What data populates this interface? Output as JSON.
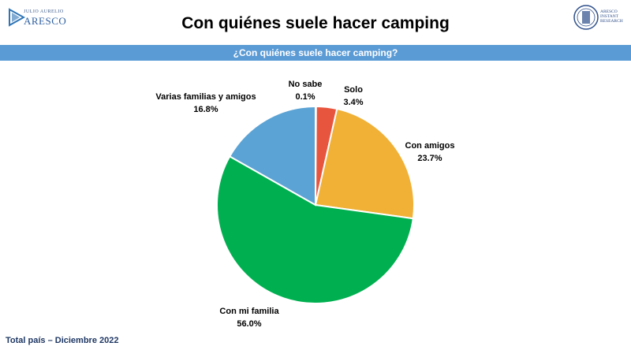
{
  "header": {
    "brand_left_small": "JULIO AURELIO",
    "brand_left_big": "ARESCO",
    "title": "Con quiénes suele hacer camping",
    "brand_right_lines": [
      "ARESCO",
      "INSTANT",
      "RESEARCH"
    ]
  },
  "banner": {
    "question": "¿Con quiénes suele hacer camping?"
  },
  "footer": {
    "note": "Total país – Diciembre 2022"
  },
  "colors": {
    "no_sabe": "#e8553e",
    "solo": "#e8553e",
    "con_amigos": "#f0b136",
    "con_mi_familia": "#00b050",
    "varias_familias": "#5ba3d5",
    "banner": "#5b9bd5"
  },
  "chart_data": {
    "type": "pie",
    "title": "¿Con quiénes suele hacer camping?",
    "start_angle_deg": 0,
    "direction": "clockwise",
    "slices": [
      {
        "label": "No sabe",
        "value": 0.1,
        "display": "0.1%",
        "color": "#e8553e"
      },
      {
        "label": "Solo",
        "value": 3.4,
        "display": "3.4%",
        "color": "#e8553e"
      },
      {
        "label": "Con amigos",
        "value": 23.7,
        "display": "23.7%",
        "color": "#f0b136"
      },
      {
        "label": "Con mi familia",
        "value": 56.0,
        "display": "56.0%",
        "color": "#00b050"
      },
      {
        "label": "Varias familias y amigos",
        "value": 16.8,
        "display": "16.8%",
        "color": "#5ba3d5"
      }
    ]
  }
}
